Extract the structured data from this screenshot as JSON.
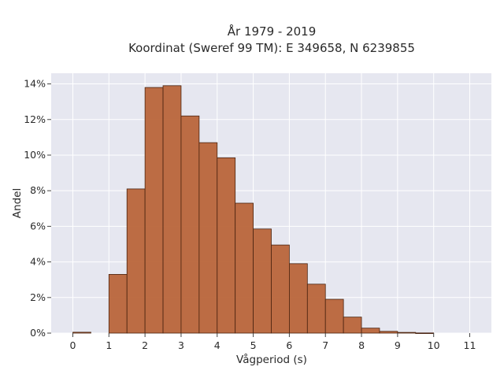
{
  "chart_data": {
    "type": "bar",
    "title_line1": "År 1979 - 2019",
    "title_line2": "Koordinat (Sweref 99 TM): E 349658, N 6239855",
    "xlabel": "Vågperiod (s)",
    "ylabel": "Andel",
    "bin_width": 0.5,
    "x_bin_starts": [
      0,
      0.5,
      1,
      1.5,
      2,
      2.5,
      3,
      3.5,
      4,
      4.5,
      5,
      5.5,
      6,
      6.5,
      7,
      7.5,
      8,
      8.5,
      9,
      9.5,
      10,
      10.5
    ],
    "values": [
      0.05,
      0,
      3.3,
      8.1,
      13.8,
      13.9,
      12.2,
      10.7,
      9.85,
      7.3,
      5.85,
      4.95,
      3.9,
      2.75,
      1.9,
      0.9,
      0.28,
      0.1,
      0.04,
      0.01,
      0,
      0
    ],
    "xlim": [
      -0.6,
      11.6
    ],
    "ylim": [
      0,
      14.6
    ],
    "x_ticks": [
      "0",
      "1",
      "2",
      "3",
      "4",
      "5",
      "6",
      "7",
      "8",
      "9",
      "10",
      "11"
    ],
    "y_ticks": [
      "0%",
      "2%",
      "4%",
      "6%",
      "8%",
      "10%",
      "12%",
      "14%"
    ],
    "grid": true,
    "colors": {
      "bar": "#b9653a",
      "bar_edge": "#4a2410",
      "plot_bg": "#e6e7f0",
      "grid": "#ffffff"
    }
  }
}
